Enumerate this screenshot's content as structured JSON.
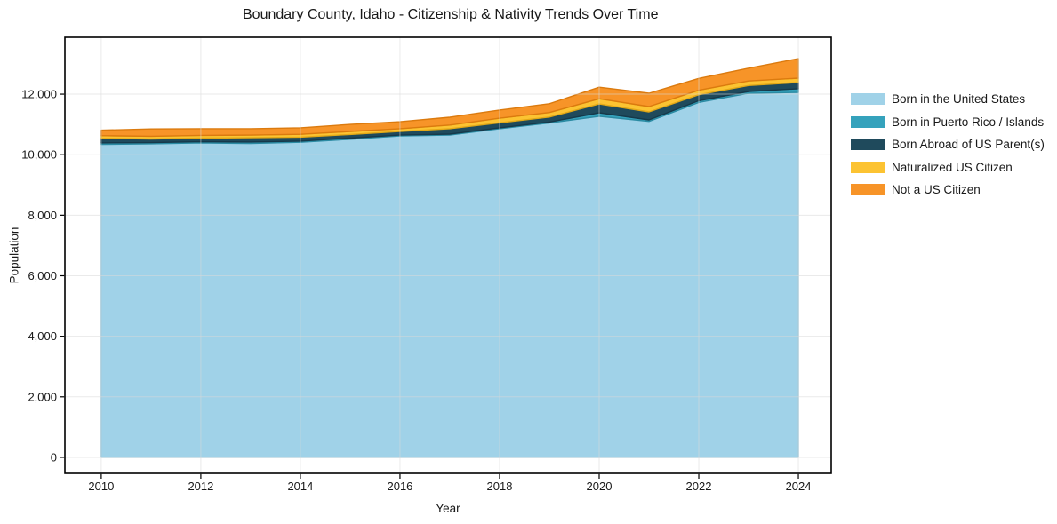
{
  "chart_data": {
    "type": "area",
    "stacked": true,
    "title": "Boundary County, Idaho - Citizenship & Nativity Trends Over Time",
    "xlabel": "Year",
    "ylabel": "Population",
    "x": [
      2010,
      2011,
      2012,
      2013,
      2014,
      2015,
      2016,
      2017,
      2018,
      2019,
      2020,
      2021,
      2022,
      2023,
      2024
    ],
    "series": [
      {
        "name": "Born in the United States",
        "color": "#a0d2e8",
        "edge_color": "#8cc3dc",
        "values": [
          10340,
          10360,
          10390,
          10370,
          10410,
          10510,
          10620,
          10650,
          10860,
          11050,
          11270,
          11100,
          11730,
          12030,
          12060
        ]
      },
      {
        "name": "Born in Puerto Rico / Islands",
        "color": "#35a2bc",
        "edge_color": "#2b8ba3",
        "values": [
          50,
          40,
          40,
          50,
          40,
          40,
          30,
          30,
          30,
          30,
          115,
          50,
          55,
          60,
          120
        ]
      },
      {
        "name": "Born Abroad of US Parent(s)",
        "color": "#1f4a5c",
        "edge_color": "#16394a",
        "values": [
          150,
          120,
          120,
          140,
          130,
          120,
          120,
          180,
          165,
          165,
          290,
          265,
          195,
          195,
          205
        ]
      },
      {
        "name": "Naturalized US Citizen",
        "color": "#fcc332",
        "edge_color": "#e2a816",
        "values": [
          90,
          90,
          90,
          90,
          95,
          100,
          90,
          120,
          150,
          150,
          175,
          175,
          150,
          150,
          145
        ]
      },
      {
        "name": "Not a US Citizen",
        "color": "#f79428",
        "edge_color": "#db7a0e",
        "values": [
          180,
          240,
          220,
          210,
          215,
          230,
          230,
          260,
          270,
          290,
          380,
          440,
          390,
          425,
          645
        ]
      }
    ],
    "xticks": [
      2010,
      2012,
      2014,
      2016,
      2018,
      2020,
      2022,
      2024
    ],
    "yticks": [
      0,
      2000,
      4000,
      6000,
      8000,
      10000,
      12000
    ],
    "xlim": [
      2009.27,
      2024.66
    ],
    "ylim": [
      -530,
      13880
    ],
    "grid": true,
    "grid_color": "#d9d9d9",
    "axis_color": "#000000",
    "legend_position": "right"
  }
}
